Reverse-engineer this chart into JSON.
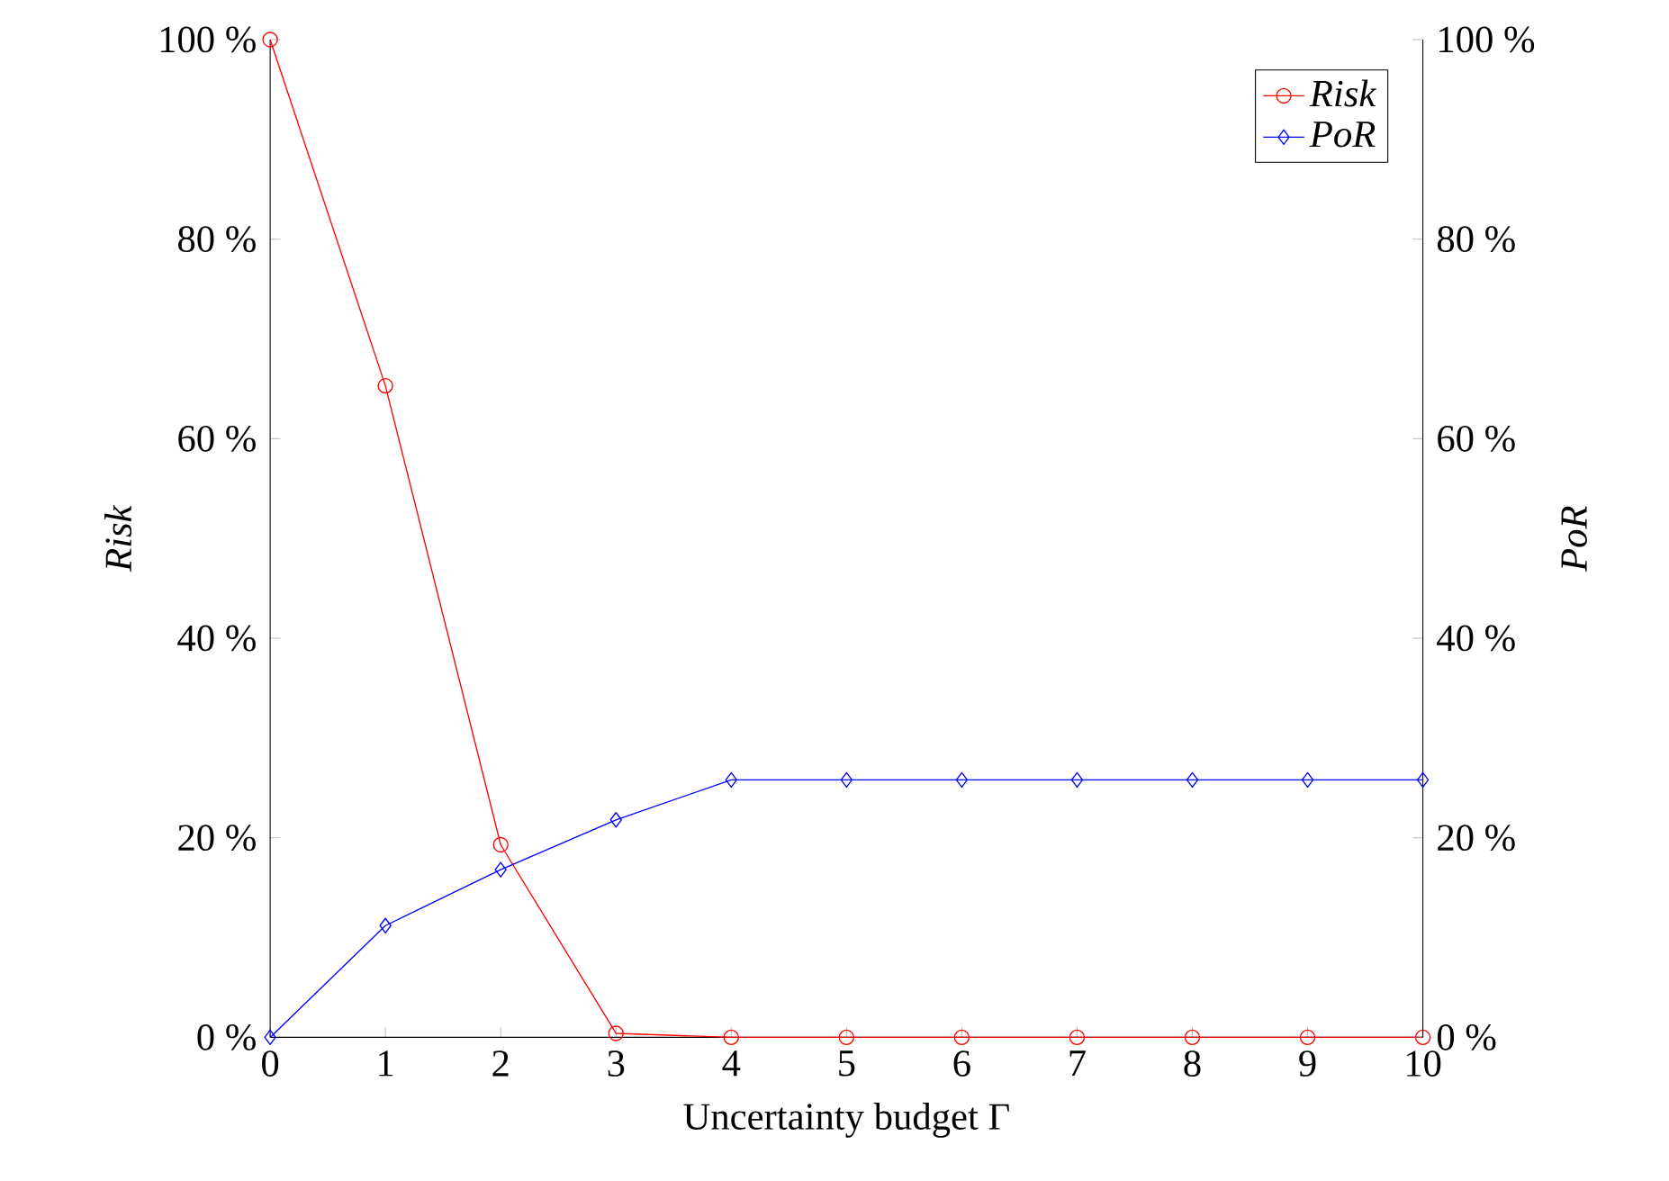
{
  "chart_data": {
    "type": "line",
    "xlabel": "Uncertainty budget Γ",
    "ylabel": "Risk",
    "y2label": "PoR",
    "x": [
      0,
      1,
      2,
      3,
      4,
      5,
      6,
      7,
      8,
      9,
      10
    ],
    "series": [
      {
        "name": "Risk",
        "color": "#ff0000",
        "marker": "circle",
        "values": [
          100,
          65.3,
          19.3,
          0.4,
          0,
          0,
          0,
          0,
          0,
          0,
          0
        ]
      },
      {
        "name": "PoR",
        "color": "#0000ff",
        "marker": "diamond",
        "axis": "y2",
        "values": [
          0,
          11.2,
          16.8,
          21.8,
          25.8,
          25.8,
          25.8,
          25.8,
          25.8,
          25.8,
          25.8
        ]
      }
    ],
    "xlim": [
      0,
      10
    ],
    "xticks": [
      0,
      1,
      2,
      3,
      4,
      5,
      6,
      7,
      8,
      9,
      10
    ],
    "ylim": [
      0,
      100
    ],
    "yticks": [
      {
        "value": 0,
        "label": "0 %"
      },
      {
        "value": 20,
        "label": "20 %"
      },
      {
        "value": 40,
        "label": "40 %"
      },
      {
        "value": 60,
        "label": "60 %"
      },
      {
        "value": 80,
        "label": "80 %"
      },
      {
        "value": 100,
        "label": "100 %"
      }
    ],
    "y2lim": [
      0,
      100
    ],
    "y2ticks": [
      {
        "value": 0,
        "label": "0 %"
      },
      {
        "value": 20,
        "label": "20 %"
      },
      {
        "value": 40,
        "label": "40 %"
      },
      {
        "value": 60,
        "label": "60 %"
      },
      {
        "value": 80,
        "label": "80 %"
      },
      {
        "value": 100,
        "label": "100 %"
      }
    ],
    "legend": "top right",
    "line_style": "solid",
    "grid": false
  }
}
